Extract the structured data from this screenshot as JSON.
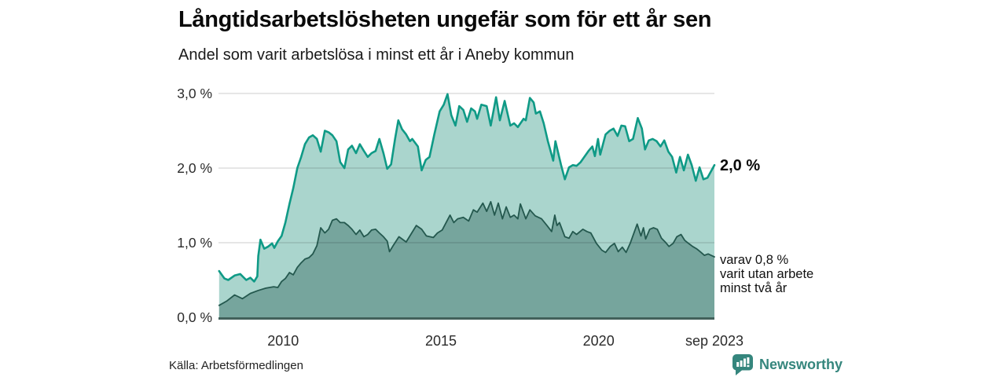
{
  "chart_data": {
    "type": "area",
    "title": "Långtidsarbetslösheten ungefär som för ett år sen",
    "subtitle": "Andel som varit arbetslösa i minst ett år i Aneby kommun",
    "grid": true,
    "x_range": [
      2007.95,
      2023.67
    ],
    "y_range": [
      0,
      3
    ],
    "x_ticks": [
      {
        "label": "2010",
        "x": 2010
      },
      {
        "label": "2015",
        "x": 2015
      },
      {
        "label": "2020",
        "x": 2020
      },
      {
        "label": "sep 2023",
        "x": 2023.67
      }
    ],
    "y_ticks": [
      {
        "label": "0,0 %",
        "value": 0
      },
      {
        "label": "1,0 %",
        "value": 1
      },
      {
        "label": "2,0 %",
        "value": 2
      },
      {
        "label": "3,0 %",
        "value": 3
      }
    ],
    "series": [
      {
        "name": "Andel som varit arbetslösa minst ett år",
        "line_color": "#0f9a86",
        "fill_color": "#aad5cd",
        "line_width": 2.6,
        "points": [
          [
            2007.97,
            0.62
          ],
          [
            2008.14,
            0.52
          ],
          [
            2008.26,
            0.5
          ],
          [
            2008.46,
            0.56
          ],
          [
            2008.64,
            0.58
          ],
          [
            2008.83,
            0.5
          ],
          [
            2008.96,
            0.53
          ],
          [
            2009.08,
            0.48
          ],
          [
            2009.18,
            0.55
          ],
          [
            2009.21,
            0.82
          ],
          [
            2009.28,
            1.04
          ],
          [
            2009.4,
            0.92
          ],
          [
            2009.53,
            0.95
          ],
          [
            2009.65,
            0.99
          ],
          [
            2009.72,
            0.93
          ],
          [
            2009.83,
            1.02
          ],
          [
            2009.95,
            1.09
          ],
          [
            2010.07,
            1.27
          ],
          [
            2010.2,
            1.52
          ],
          [
            2010.32,
            1.73
          ],
          [
            2010.45,
            2.0
          ],
          [
            2010.57,
            2.15
          ],
          [
            2010.69,
            2.32
          ],
          [
            2010.82,
            2.41
          ],
          [
            2010.94,
            2.44
          ],
          [
            2011.07,
            2.39
          ],
          [
            2011.19,
            2.22
          ],
          [
            2011.32,
            2.5
          ],
          [
            2011.44,
            2.48
          ],
          [
            2011.56,
            2.44
          ],
          [
            2011.69,
            2.36
          ],
          [
            2011.81,
            2.08
          ],
          [
            2011.94,
            2.0
          ],
          [
            2012.06,
            2.25
          ],
          [
            2012.18,
            2.3
          ],
          [
            2012.31,
            2.2
          ],
          [
            2012.43,
            2.32
          ],
          [
            2012.56,
            2.23
          ],
          [
            2012.68,
            2.15
          ],
          [
            2012.8,
            2.2
          ],
          [
            2012.93,
            2.23
          ],
          [
            2013.05,
            2.39
          ],
          [
            2013.18,
            2.2
          ],
          [
            2013.3,
            1.99
          ],
          [
            2013.42,
            2.05
          ],
          [
            2013.55,
            2.4
          ],
          [
            2013.65,
            2.64
          ],
          [
            2013.77,
            2.52
          ],
          [
            2013.9,
            2.45
          ],
          [
            2014.02,
            2.36
          ],
          [
            2014.09,
            2.39
          ],
          [
            2014.27,
            2.29
          ],
          [
            2014.39,
            1.97
          ],
          [
            2014.52,
            2.11
          ],
          [
            2014.64,
            2.15
          ],
          [
            2014.79,
            2.45
          ],
          [
            2014.96,
            2.76
          ],
          [
            2015.09,
            2.85
          ],
          [
            2015.21,
            2.99
          ],
          [
            2015.33,
            2.71
          ],
          [
            2015.46,
            2.57
          ],
          [
            2015.58,
            2.83
          ],
          [
            2015.71,
            2.78
          ],
          [
            2015.83,
            2.62
          ],
          [
            2015.96,
            2.8
          ],
          [
            2016.08,
            2.76
          ],
          [
            2016.15,
            2.66
          ],
          [
            2016.28,
            2.85
          ],
          [
            2016.45,
            2.83
          ],
          [
            2016.58,
            2.57
          ],
          [
            2016.75,
            2.95
          ],
          [
            2016.87,
            2.64
          ],
          [
            2017.02,
            2.9
          ],
          [
            2017.2,
            2.57
          ],
          [
            2017.32,
            2.6
          ],
          [
            2017.44,
            2.55
          ],
          [
            2017.62,
            2.66
          ],
          [
            2017.69,
            2.64
          ],
          [
            2017.82,
            2.94
          ],
          [
            2017.94,
            2.88
          ],
          [
            2018.01,
            2.73
          ],
          [
            2018.14,
            2.76
          ],
          [
            2018.26,
            2.6
          ],
          [
            2018.39,
            2.36
          ],
          [
            2018.56,
            2.1
          ],
          [
            2018.63,
            2.36
          ],
          [
            2018.81,
            2.04
          ],
          [
            2018.93,
            1.85
          ],
          [
            2019.06,
            2.01
          ],
          [
            2019.18,
            2.04
          ],
          [
            2019.3,
            2.03
          ],
          [
            2019.43,
            2.08
          ],
          [
            2019.68,
            2.23
          ],
          [
            2019.8,
            2.29
          ],
          [
            2019.88,
            2.16
          ],
          [
            2019.98,
            2.39
          ],
          [
            2020.05,
            2.18
          ],
          [
            2020.22,
            2.45
          ],
          [
            2020.35,
            2.5
          ],
          [
            2020.47,
            2.53
          ],
          [
            2020.6,
            2.43
          ],
          [
            2020.72,
            2.57
          ],
          [
            2020.84,
            2.56
          ],
          [
            2020.97,
            2.36
          ],
          [
            2021.09,
            2.39
          ],
          [
            2021.24,
            2.67
          ],
          [
            2021.37,
            2.53
          ],
          [
            2021.47,
            2.25
          ],
          [
            2021.59,
            2.37
          ],
          [
            2021.71,
            2.39
          ],
          [
            2021.84,
            2.36
          ],
          [
            2021.96,
            2.29
          ],
          [
            2022.08,
            2.37
          ],
          [
            2022.21,
            2.22
          ],
          [
            2022.33,
            2.15
          ],
          [
            2022.46,
            1.94
          ],
          [
            2022.58,
            2.15
          ],
          [
            2022.7,
            1.97
          ],
          [
            2022.83,
            2.18
          ],
          [
            2022.95,
            2.04
          ],
          [
            2023.08,
            1.83
          ],
          [
            2023.2,
            2.01
          ],
          [
            2023.32,
            1.85
          ],
          [
            2023.45,
            1.87
          ],
          [
            2023.67,
            2.04
          ]
        ]
      },
      {
        "name": "Andel som varit arbetslösa minst två år",
        "line_color": "#24584e",
        "fill_color": "#76a59d",
        "line_width": 1.8,
        "points": [
          [
            2007.97,
            0.16
          ],
          [
            2008.22,
            0.22
          ],
          [
            2008.46,
            0.3
          ],
          [
            2008.71,
            0.25
          ],
          [
            2008.96,
            0.32
          ],
          [
            2009.21,
            0.36
          ],
          [
            2009.45,
            0.39
          ],
          [
            2009.7,
            0.41
          ],
          [
            2009.83,
            0.4
          ],
          [
            2009.95,
            0.48
          ],
          [
            2010.07,
            0.52
          ],
          [
            2010.2,
            0.6
          ],
          [
            2010.32,
            0.57
          ],
          [
            2010.45,
            0.67
          ],
          [
            2010.57,
            0.73
          ],
          [
            2010.69,
            0.78
          ],
          [
            2010.82,
            0.8
          ],
          [
            2010.94,
            0.85
          ],
          [
            2011.07,
            0.96
          ],
          [
            2011.19,
            1.2
          ],
          [
            2011.32,
            1.13
          ],
          [
            2011.44,
            1.18
          ],
          [
            2011.56,
            1.3
          ],
          [
            2011.69,
            1.32
          ],
          [
            2011.81,
            1.27
          ],
          [
            2011.94,
            1.27
          ],
          [
            2012.06,
            1.23
          ],
          [
            2012.18,
            1.18
          ],
          [
            2012.31,
            1.11
          ],
          [
            2012.43,
            1.17
          ],
          [
            2012.56,
            1.08
          ],
          [
            2012.68,
            1.11
          ],
          [
            2012.8,
            1.17
          ],
          [
            2012.93,
            1.18
          ],
          [
            2013.05,
            1.13
          ],
          [
            2013.18,
            1.08
          ],
          [
            2013.3,
            1.02
          ],
          [
            2013.37,
            0.88
          ],
          [
            2013.47,
            0.95
          ],
          [
            2013.67,
            1.08
          ],
          [
            2013.9,
            1.01
          ],
          [
            2014.22,
            1.23
          ],
          [
            2014.39,
            1.18
          ],
          [
            2014.54,
            1.09
          ],
          [
            2014.76,
            1.07
          ],
          [
            2014.89,
            1.13
          ],
          [
            2015.04,
            1.17
          ],
          [
            2015.29,
            1.37
          ],
          [
            2015.41,
            1.27
          ],
          [
            2015.53,
            1.32
          ],
          [
            2015.71,
            1.34
          ],
          [
            2015.88,
            1.29
          ],
          [
            2016.03,
            1.44
          ],
          [
            2016.15,
            1.41
          ],
          [
            2016.33,
            1.53
          ],
          [
            2016.45,
            1.42
          ],
          [
            2016.58,
            1.55
          ],
          [
            2016.7,
            1.37
          ],
          [
            2016.82,
            1.53
          ],
          [
            2016.95,
            1.32
          ],
          [
            2017.07,
            1.48
          ],
          [
            2017.2,
            1.34
          ],
          [
            2017.32,
            1.37
          ],
          [
            2017.44,
            1.32
          ],
          [
            2017.52,
            1.52
          ],
          [
            2017.69,
            1.32
          ],
          [
            2017.82,
            1.44
          ],
          [
            2017.99,
            1.36
          ],
          [
            2018.19,
            1.32
          ],
          [
            2018.36,
            1.23
          ],
          [
            2018.51,
            1.15
          ],
          [
            2018.61,
            1.37
          ],
          [
            2018.68,
            1.23
          ],
          [
            2018.76,
            1.27
          ],
          [
            2018.93,
            1.08
          ],
          [
            2019.06,
            1.06
          ],
          [
            2019.18,
            1.15
          ],
          [
            2019.3,
            1.11
          ],
          [
            2019.5,
            1.18
          ],
          [
            2019.63,
            1.15
          ],
          [
            2019.75,
            1.13
          ],
          [
            2019.93,
            0.99
          ],
          [
            2020.1,
            0.9
          ],
          [
            2020.22,
            0.87
          ],
          [
            2020.37,
            0.95
          ],
          [
            2020.5,
            0.99
          ],
          [
            2020.62,
            0.88
          ],
          [
            2020.75,
            0.94
          ],
          [
            2020.87,
            0.87
          ],
          [
            2021.0,
            0.99
          ],
          [
            2021.22,
            1.25
          ],
          [
            2021.34,
            1.09
          ],
          [
            2021.42,
            1.2
          ],
          [
            2021.49,
            1.05
          ],
          [
            2021.62,
            1.18
          ],
          [
            2021.74,
            1.2
          ],
          [
            2021.86,
            1.18
          ],
          [
            2021.99,
            1.06
          ],
          [
            2022.11,
            1.01
          ],
          [
            2022.23,
            0.95
          ],
          [
            2022.36,
            0.99
          ],
          [
            2022.48,
            1.08
          ],
          [
            2022.61,
            1.11
          ],
          [
            2022.73,
            1.03
          ],
          [
            2022.85,
            0.99
          ],
          [
            2022.98,
            0.95
          ],
          [
            2023.1,
            0.92
          ],
          [
            2023.22,
            0.88
          ],
          [
            2023.35,
            0.83
          ],
          [
            2023.47,
            0.85
          ],
          [
            2023.67,
            0.81
          ]
        ]
      }
    ],
    "annotations": {
      "end_label": "2,0 %",
      "detail_lines": [
        "varav 0,8 %",
        "varit utan arbete",
        "minst två år"
      ]
    },
    "colors": {
      "grid": "rgba(0,0,0,0.13)",
      "axis": "#42615b",
      "tick_text": "#2b2b2b"
    }
  },
  "footer": {
    "source": "Källa: Arbetsförmedlingen",
    "brand": "Newsworthy",
    "brand_color": "#35867d"
  }
}
